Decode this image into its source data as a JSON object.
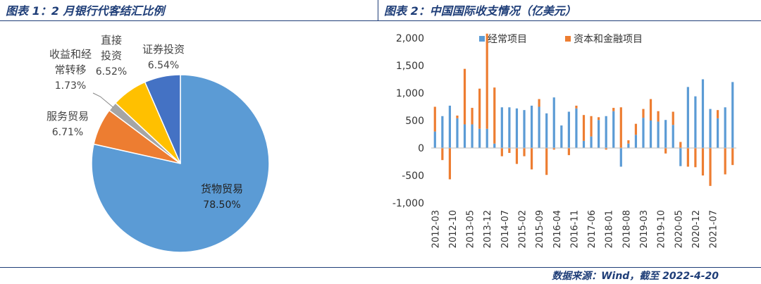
{
  "charts": {
    "left_title": "图表 1：2 月银行代客结汇比例",
    "right_title": "图表 2：中国国际收支情况（亿美元）"
  },
  "source": "数据来源：Wind，截至 2022-4-20",
  "chart_data": [
    {
      "type": "pie",
      "labels": [
        "货物贸易",
        "服务贸易",
        "收益和经常转移",
        "直接投资",
        "证券投资"
      ],
      "values": [
        78.5,
        6.71,
        1.73,
        6.52,
        6.54
      ],
      "display_values": [
        "78.50%",
        "6.71%",
        "1.73%",
        "6.52%",
        "6.54%"
      ],
      "colors": [
        "#5b9bd5",
        "#ed7d31",
        "#a5a5a5",
        "#ffc000",
        "#4472c4"
      ]
    },
    {
      "type": "bar",
      "stacked": true,
      "ylim": [
        -1000,
        2000
      ],
      "yticks": [
        -1000,
        -500,
        0,
        500,
        1000,
        1500,
        2000
      ],
      "ytick_labels": [
        "-1,000",
        "-500",
        "0",
        "500",
        "1,000",
        "1,500",
        "2,000"
      ],
      "tick_labels": [
        "2012-03",
        "2012-10",
        "2013-05",
        "2013-12",
        "2014-07",
        "2015-02",
        "2015-09",
        "2016-04",
        "2016-11",
        "2017-06",
        "2018-01",
        "2018-08",
        "2019-03",
        "2019-10",
        "2020-05",
        "2020-12",
        "2021-07"
      ],
      "legend_position": "top",
      "series": [
        {
          "name": "经常项目",
          "color": "#5b9bd5",
          "values": [
            300,
            580,
            770,
            540,
            430,
            430,
            350,
            350,
            80,
            740,
            740,
            720,
            690,
            770,
            750,
            630,
            920,
            410,
            660,
            720,
            130,
            210,
            510,
            580,
            670,
            -340,
            80,
            240,
            550,
            500,
            480,
            510,
            420,
            -330,
            1110,
            940,
            1250,
            710,
            540,
            740,
            1200
          ]
        },
        {
          "name": "资本和金融项目",
          "color": "#ed7d31",
          "values": [
            450,
            -220,
            -570,
            50,
            1010,
            300,
            730,
            1730,
            1020,
            -150,
            -90,
            -290,
            -150,
            -390,
            140,
            -490,
            -30,
            0,
            -130,
            50,
            470,
            370,
            50,
            -30,
            60,
            740,
            60,
            200,
            160,
            390,
            190,
            -100,
            240,
            110,
            -340,
            -350,
            -500,
            -690,
            150,
            -480,
            -310
          ]
        }
      ]
    }
  ]
}
